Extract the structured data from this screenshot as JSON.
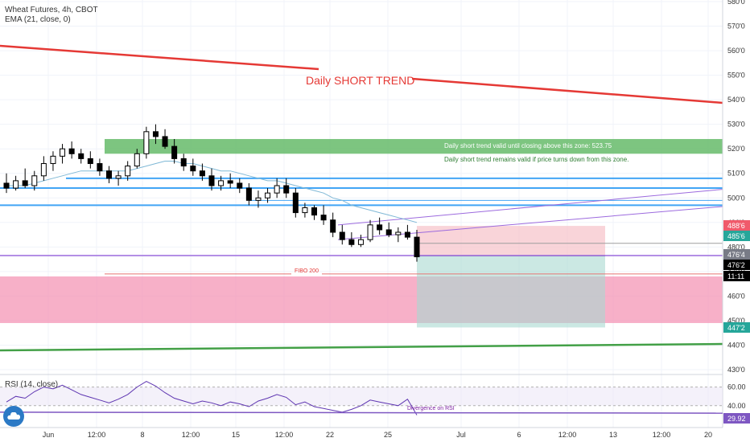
{
  "header": {
    "symbol_line": "Wheat Futures, 4h, CBOT",
    "indicator_line": "EMA (21, close, 0)"
  },
  "rsi_panel": {
    "label": "RSI (14, close)",
    "annotation": "Divergence on RSI",
    "value_badge": "29.92",
    "axis_ticks": [
      "60.00",
      "40.00"
    ]
  },
  "annotations": {
    "trend_label": "Daily SHORT TREND",
    "zone_note_1": "Daily short trend valid until closing above this zone: 523.75",
    "zone_note_2": "Daily short trend remains valid if price turns down from this zone.",
    "fibo_label": "FIBO 200"
  },
  "price_axis": {
    "ticks": [
      "580'0",
      "570'0",
      "560'0",
      "550'0",
      "540'0",
      "530'0",
      "520'0",
      "510'0",
      "500'0",
      "490'0",
      "480'0",
      "470'0",
      "460'0",
      "450'0",
      "440'0",
      "430'0"
    ],
    "badges": [
      {
        "text": "488'6",
        "color": "#f05a6b"
      },
      {
        "text": "485'6",
        "color": "#26a69a"
      },
      {
        "text": "476'4",
        "color": "#787b86"
      },
      {
        "text": "476'2",
        "color": "#000000"
      },
      {
        "text": "11:11",
        "color": "#000000"
      },
      {
        "text": "447'2",
        "color": "#26a69a"
      }
    ]
  },
  "time_axis": {
    "ticks": [
      "Jun",
      "12:00",
      "8",
      "12:00",
      "15",
      "12:00",
      "22",
      "25",
      "Jul",
      "6",
      "12:00",
      "13",
      "12:00",
      "20"
    ]
  },
  "colors": {
    "up_candle": "#ffffff",
    "down_candle": "#000000",
    "trend_line": "#e53935",
    "support_green": "#43a047",
    "blue_level": "#42a5f5",
    "purple_line": "#9c6ade",
    "green_zone": "#66bb6a",
    "pink_zone": "#f48fb1",
    "ema": "#7fb8d6"
  },
  "chart_data": {
    "type": "candlestick",
    "title": "Wheat Futures, 4h, CBOT",
    "ylim": [
      428,
      581
    ],
    "ema_period": 21,
    "candles": [
      {
        "o": 506,
        "h": 510,
        "l": 502,
        "c": 504
      },
      {
        "o": 504,
        "h": 509,
        "l": 503,
        "c": 507
      },
      {
        "o": 507,
        "h": 512,
        "l": 504,
        "c": 505
      },
      {
        "o": 505,
        "h": 511,
        "l": 503,
        "c": 509
      },
      {
        "o": 509,
        "h": 517,
        "l": 507,
        "c": 514
      },
      {
        "o": 514,
        "h": 519,
        "l": 511,
        "c": 517
      },
      {
        "o": 517,
        "h": 522,
        "l": 514,
        "c": 520
      },
      {
        "o": 520,
        "h": 523,
        "l": 516,
        "c": 518
      },
      {
        "o": 518,
        "h": 520,
        "l": 514,
        "c": 516
      },
      {
        "o": 516,
        "h": 519,
        "l": 512,
        "c": 514
      },
      {
        "o": 514,
        "h": 516,
        "l": 509,
        "c": 511
      },
      {
        "o": 511,
        "h": 513,
        "l": 506,
        "c": 508
      },
      {
        "o": 508,
        "h": 511,
        "l": 505,
        "c": 509
      },
      {
        "o": 509,
        "h": 515,
        "l": 507,
        "c": 513
      },
      {
        "o": 513,
        "h": 520,
        "l": 512,
        "c": 518
      },
      {
        "o": 518,
        "h": 529,
        "l": 516,
        "c": 527
      },
      {
        "o": 527,
        "h": 530,
        "l": 522,
        "c": 525
      },
      {
        "o": 525,
        "h": 528,
        "l": 520,
        "c": 521
      },
      {
        "o": 521,
        "h": 524,
        "l": 514,
        "c": 516
      },
      {
        "o": 516,
        "h": 518,
        "l": 511,
        "c": 513
      },
      {
        "o": 513,
        "h": 516,
        "l": 509,
        "c": 511
      },
      {
        "o": 511,
        "h": 514,
        "l": 507,
        "c": 509
      },
      {
        "o": 509,
        "h": 512,
        "l": 503,
        "c": 505
      },
      {
        "o": 505,
        "h": 509,
        "l": 503,
        "c": 507
      },
      {
        "o": 507,
        "h": 510,
        "l": 504,
        "c": 506
      },
      {
        "o": 506,
        "h": 508,
        "l": 502,
        "c": 504
      },
      {
        "o": 504,
        "h": 506,
        "l": 497,
        "c": 499
      },
      {
        "o": 499,
        "h": 503,
        "l": 496,
        "c": 500
      },
      {
        "o": 500,
        "h": 504,
        "l": 498,
        "c": 502
      },
      {
        "o": 502,
        "h": 508,
        "l": 500,
        "c": 505
      },
      {
        "o": 505,
        "h": 508,
        "l": 500,
        "c": 502
      },
      {
        "o": 502,
        "h": 504,
        "l": 492,
        "c": 494
      },
      {
        "o": 494,
        "h": 498,
        "l": 492,
        "c": 496
      },
      {
        "o": 496,
        "h": 497,
        "l": 491,
        "c": 493
      },
      {
        "o": 493,
        "h": 497,
        "l": 489,
        "c": 491
      },
      {
        "o": 491,
        "h": 494,
        "l": 484,
        "c": 486
      },
      {
        "o": 486,
        "h": 489,
        "l": 481,
        "c": 483
      },
      {
        "o": 483,
        "h": 486,
        "l": 480,
        "c": 481
      },
      {
        "o": 481,
        "h": 485,
        "l": 480,
        "c": 483
      },
      {
        "o": 483,
        "h": 491,
        "l": 482,
        "c": 489
      },
      {
        "o": 489,
        "h": 492,
        "l": 485,
        "c": 487
      },
      {
        "o": 487,
        "h": 490,
        "l": 484,
        "c": 485
      },
      {
        "o": 485,
        "h": 488,
        "l": 482,
        "c": 486
      },
      {
        "o": 486,
        "h": 489,
        "l": 483,
        "c": 484
      },
      {
        "o": 484,
        "h": 487,
        "l": 474,
        "c": 476
      }
    ],
    "ema_values": [
      505,
      505,
      505,
      506,
      507,
      508,
      509,
      510,
      511,
      511,
      511,
      511,
      511,
      511,
      512,
      513,
      514,
      515,
      515,
      514,
      514,
      513,
      512,
      511,
      511,
      510,
      509,
      508,
      507,
      507,
      506,
      505,
      504,
      503,
      502,
      500,
      499,
      497,
      496,
      495,
      494,
      493,
      492,
      491,
      490
    ],
    "levels": {
      "blue_upper": 508,
      "blue_mid": 504,
      "blue_mid2": 499,
      "blue_lower": 497,
      "purple_horizontal": 476.5,
      "fibo_200": 469,
      "green_zone": [
        518,
        524
      ],
      "pink_zone": [
        449,
        468
      ],
      "position_entry": 476.4,
      "position_target": 447.2,
      "position_stop": 488.6
    },
    "rsi": {
      "ylim": [
        20,
        70
      ],
      "reference_levels": [
        60,
        40
      ],
      "last": 29.92
    }
  }
}
